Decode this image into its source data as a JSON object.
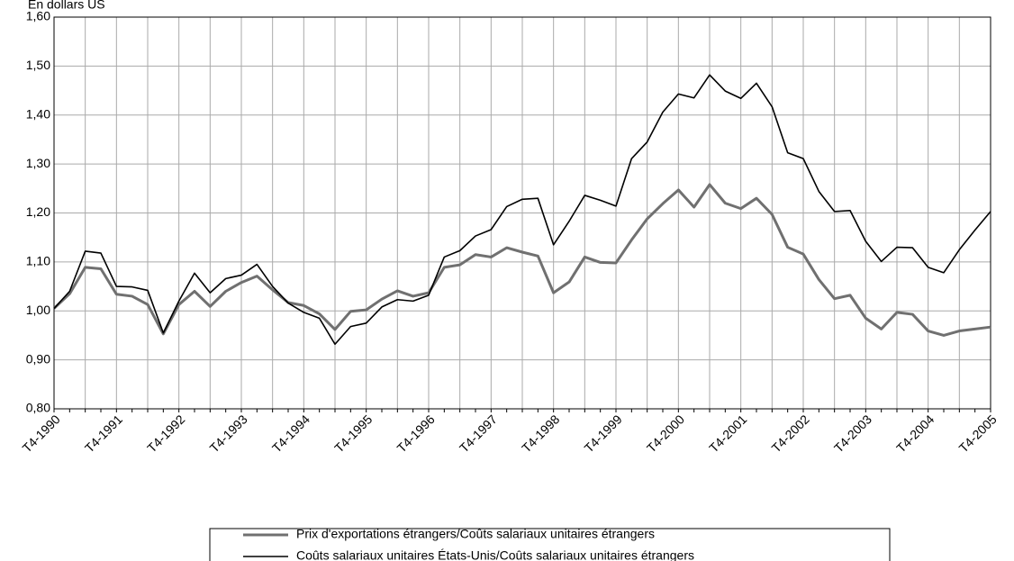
{
  "chart_data": {
    "type": "line",
    "y_label": "En dollars US",
    "categories": [
      "T4-1990",
      null,
      null,
      null,
      "T4-1991",
      null,
      null,
      null,
      "T4-1992",
      null,
      null,
      null,
      "T4-1993",
      null,
      null,
      null,
      "T4-1994",
      null,
      null,
      null,
      "T4-1995",
      null,
      null,
      null,
      "T4-1996",
      null,
      null,
      null,
      "T4-1997",
      null,
      null,
      null,
      "T4-1998",
      null,
      null,
      null,
      "T4-1999",
      null,
      null,
      null,
      "T4-2000",
      null,
      null,
      null,
      "T4-2001",
      null,
      null,
      null,
      "T4-2002",
      null,
      null,
      null,
      "T4-2003",
      null,
      null,
      null,
      "T4-2004",
      null,
      null,
      null,
      "T4-2005"
    ],
    "series": [
      {
        "name": "Prix d'exportations étrangers/Coûts salariaux unitaires étrangers",
        "color": "#707070",
        "values": [
          1.005,
          1.035,
          1.089,
          1.086,
          1.034,
          1.03,
          1.013,
          0.953,
          1.013,
          1.04,
          1.009,
          1.04,
          1.058,
          1.071,
          1.043,
          1.017,
          1.011,
          0.994,
          0.962,
          0.999,
          1.002,
          1.024,
          1.041,
          1.03,
          1.037,
          1.089,
          1.094,
          1.115,
          1.11,
          1.129,
          1.12,
          1.112,
          1.037,
          1.059,
          1.11,
          1.099,
          1.098,
          1.145,
          1.188,
          1.219,
          1.247,
          1.212,
          1.258,
          1.22,
          1.209,
          1.23,
          1.197,
          1.13,
          1.116,
          1.064,
          1.025,
          1.032,
          0.985,
          0.963,
          0.997,
          0.993,
          0.959,
          0.95,
          0.959,
          0.963,
          0.967
        ]
      },
      {
        "name": "Coûts salariaux unitaires États-Unis/Coûts salariaux unitaires étrangers",
        "color": "#000000",
        "values": [
          1.005,
          1.04,
          1.122,
          1.118,
          1.05,
          1.049,
          1.042,
          0.955,
          1.02,
          1.077,
          1.037,
          1.066,
          1.073,
          1.095,
          1.05,
          1.016,
          0.997,
          0.985,
          0.932,
          0.968,
          0.975,
          1.008,
          1.023,
          1.02,
          1.032,
          1.11,
          1.123,
          1.153,
          1.166,
          1.213,
          1.228,
          1.23,
          1.135,
          1.183,
          1.236,
          1.226,
          1.214,
          1.311,
          1.345,
          1.406,
          1.443,
          1.435,
          1.482,
          1.449,
          1.434,
          1.465,
          1.417,
          1.323,
          1.311,
          1.244,
          1.203,
          1.205,
          1.142,
          1.101,
          1.13,
          1.129,
          1.089,
          1.078,
          1.125,
          1.165,
          1.203
        ]
      }
    ],
    "ylim": [
      0.8,
      1.6
    ],
    "yticks": [
      {
        "value": 0.8,
        "label": "0,80"
      },
      {
        "value": 0.9,
        "label": "0,90"
      },
      {
        "value": 1.0,
        "label": "1,00"
      },
      {
        "value": 1.1,
        "label": "1,10"
      },
      {
        "value": 1.2,
        "label": "1,20"
      },
      {
        "value": 1.3,
        "label": "1,30"
      },
      {
        "value": 1.4,
        "label": "1,40"
      },
      {
        "value": 1.5,
        "label": "1,50"
      },
      {
        "value": 1.6,
        "label": "1,60"
      }
    ],
    "grid": true
  }
}
